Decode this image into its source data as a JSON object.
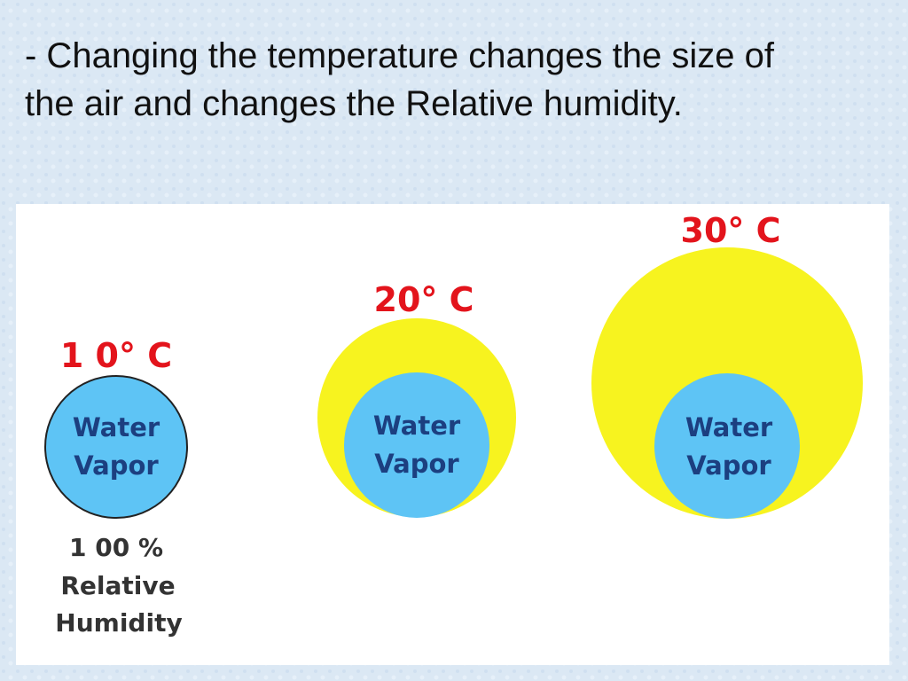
{
  "heading": {
    "lines": [
      "- Changing the temperature changes the size of",
      "the air and changes the Relative humidity."
    ]
  },
  "diagrams": [
    {
      "temperature": "1 0° C",
      "inner": [
        "Water",
        "Vapor"
      ],
      "caption": [
        "1 00 %",
        "Relative",
        "Humidity"
      ]
    },
    {
      "temperature": "20° C",
      "inner": [
        "Water",
        "Vapor"
      ]
    },
    {
      "temperature": "30° C",
      "inner": [
        "Water",
        "Vapor"
      ]
    }
  ]
}
